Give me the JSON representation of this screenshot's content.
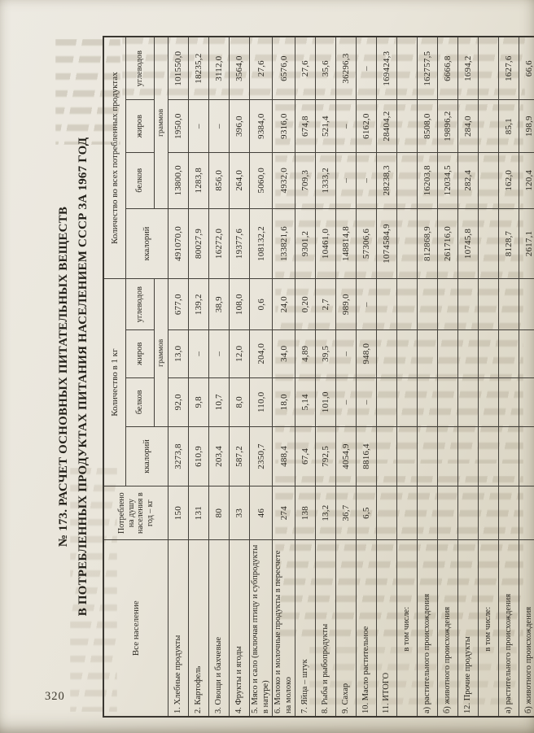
{
  "document": {
    "page_number": "320",
    "title_line1": "№ 173. РАСЧЕТ ОСНОВНЫХ ПИТАТЕЛЬНЫХ ВЕЩЕСТВ",
    "title_line2": "В ПОТРЕБЛЕННЫХ ПРОДУКТАХ ПИТАНИЯ НАСЕЛЕНИЕМ СССР ЗА 1967 ГОД"
  },
  "table": {
    "headers": {
      "population": "Все население",
      "per_capita": "Потреблено на душу населения в год – кг",
      "group_per_kg": "Количество в 1 кг",
      "group_total": "Количество во всех потребленных продуктах",
      "kcal": "ккалорий",
      "protein": "белков",
      "fat": "жиров",
      "carbs": "углеводов",
      "grams": "граммов"
    },
    "rows": [
      {
        "name": "1. Хлебные продукты",
        "cells": [
          "150",
          "3273,8",
          "92,0",
          "13,0",
          "677,0",
          "491070,0",
          "13800,0",
          "1950,0",
          "101550,0"
        ]
      },
      {
        "name": "2. Картофель",
        "cells": [
          "131",
          "610,9",
          "9,8",
          "–",
          "139,2",
          "80027,9",
          "1283,8",
          "–",
          "18235,2"
        ]
      },
      {
        "name": "3. Овощи и бахчевые",
        "cells": [
          "80",
          "203,4",
          "10,7",
          "–",
          "38,9",
          "16272,0",
          "856,0",
          "–",
          "3112,0"
        ]
      },
      {
        "name": "4. Фрукты и ягоды",
        "cells": [
          "33",
          "587,2",
          "8,0",
          "12,0",
          "108,0",
          "19377,6",
          "264,0",
          "396,0",
          "3564,0"
        ]
      },
      {
        "name": "5. Мясо и сало (включая птицу и субпродукты в натуре)",
        "cells": [
          "46",
          "2350,7",
          "110,0",
          "204,0",
          "0,6",
          "108132,2",
          "5060,0",
          "9384,0",
          "27,6"
        ]
      },
      {
        "name": "6. Молоко и молочные продукты в пересчете на молоко",
        "cells": [
          "274",
          "488,4",
          "18,0",
          "34,0",
          "24,0",
          "133821,6",
          "4932,0",
          "9316,0",
          "6576,0"
        ]
      },
      {
        "name": "7. Яйца – штук",
        "cells": [
          "138",
          "67,4",
          "5,14",
          "4,89",
          "0,20",
          "9301,2",
          "709,3",
          "674,8",
          "27,6"
        ]
      },
      {
        "name": "8. Рыба и рыбопродукты",
        "cells": [
          "13,2",
          "792,5",
          "101,0",
          "39,5",
          "2,7",
          "10461,0",
          "1333,2",
          "521,4",
          "35,6"
        ]
      },
      {
        "name": "9. Сахар",
        "cells": [
          "36,7",
          "4054,9",
          "–",
          "–",
          "989,0",
          "148814,8",
          "–",
          "–",
          "36296,3"
        ]
      },
      {
        "name": "10. Масло растительное",
        "cells": [
          "6,5",
          "8816,4",
          "–",
          "948,0",
          "–",
          "57306,6",
          "–",
          "6162,0",
          "–"
        ]
      },
      {
        "name": "11. ИТОГО",
        "cells": [
          "",
          "",
          "",
          "",
          "",
          "1074584,9",
          "28238,3",
          "28404,2",
          "169424,3"
        ]
      },
      {
        "name": "в том числе:",
        "center": true,
        "cells": [
          "",
          "",
          "",
          "",
          "",
          "",
          "",
          "",
          ""
        ]
      },
      {
        "name": "а) растительного происхождения",
        "cells": [
          "",
          "",
          "",
          "",
          "",
          "812868,9",
          "16203,8",
          "8508,0",
          "162757,5"
        ]
      },
      {
        "name": "б) животного происхождения",
        "cells": [
          "",
          "",
          "",
          "",
          "",
          "261716,0",
          "12034,5",
          "19896,2",
          "6666,8"
        ]
      },
      {
        "name": "12. Прочие продукты",
        "cells": [
          "",
          "",
          "",
          "",
          "",
          "10745,8",
          "282,4",
          "284,0",
          "1694,2"
        ]
      },
      {
        "name": "в том числе:",
        "center": true,
        "cells": [
          "",
          "",
          "",
          "",
          "",
          "",
          "",
          "",
          ""
        ]
      },
      {
        "name": "а) растительного происхождения",
        "cells": [
          "",
          "",
          "",
          "",
          "",
          "8128,7",
          "162,0",
          "85,1",
          "1627,6"
        ]
      },
      {
        "name": "б) животного происхождения",
        "cells": [
          "",
          "",
          "",
          "",
          "",
          "2617,1",
          "120,4",
          "198,9",
          "66,6"
        ]
      }
    ]
  }
}
